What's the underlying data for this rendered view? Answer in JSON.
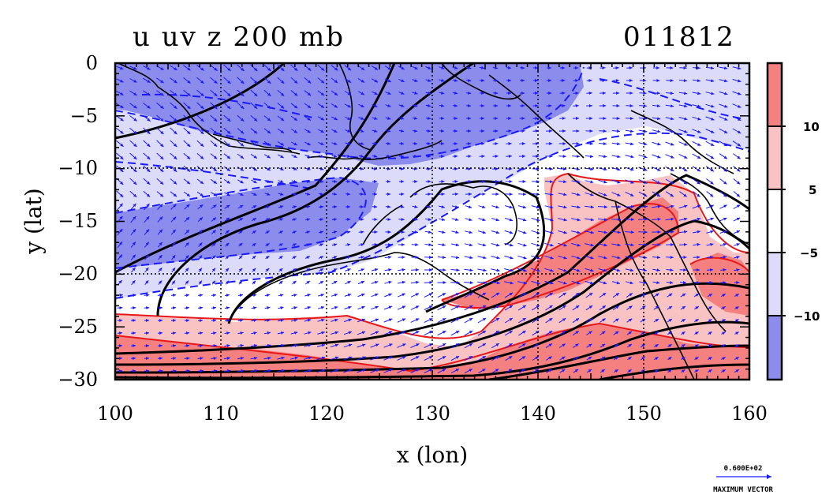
{
  "title": {
    "left": "u uv z 200 mb",
    "right": "011812"
  },
  "axes": {
    "x_label": "x (lon)",
    "y_label": "y (lat)",
    "x_ticks": [
      100,
      110,
      120,
      130,
      140,
      150,
      160
    ],
    "y_ticks": [
      0,
      -5,
      -10,
      -15,
      -20,
      -25,
      -30
    ],
    "x_tick_labels": [
      "100",
      "110",
      "120",
      "130",
      "140",
      "150",
      "160"
    ],
    "y_tick_labels": [
      "0",
      "−5",
      "−10",
      "−15",
      "−20",
      "−25",
      "−30"
    ],
    "x_range": [
      100,
      160
    ],
    "y_range": [
      -30,
      0
    ],
    "grid": true
  },
  "colorbar": {
    "levels": [
      "10",
      "5",
      "−5",
      "−10"
    ],
    "colors": [
      "#f58080",
      "#f9c3c3",
      "#ffffff",
      "#dcdcfa",
      "#8c8cec"
    ]
  },
  "vector_key": {
    "magnitude": "0.600E+02",
    "caption": "MAXIMUM VECTOR"
  },
  "colors": {
    "strong_east": "#f58080",
    "weak_east": "#f9c3c3",
    "weak_west": "#dcdcfa",
    "strong_west": "#8c8cec",
    "vectors": "#1a1aff",
    "contour_neg": "#1a1aff",
    "contour_pos": "#e81818",
    "height_contour": "#000000"
  }
}
